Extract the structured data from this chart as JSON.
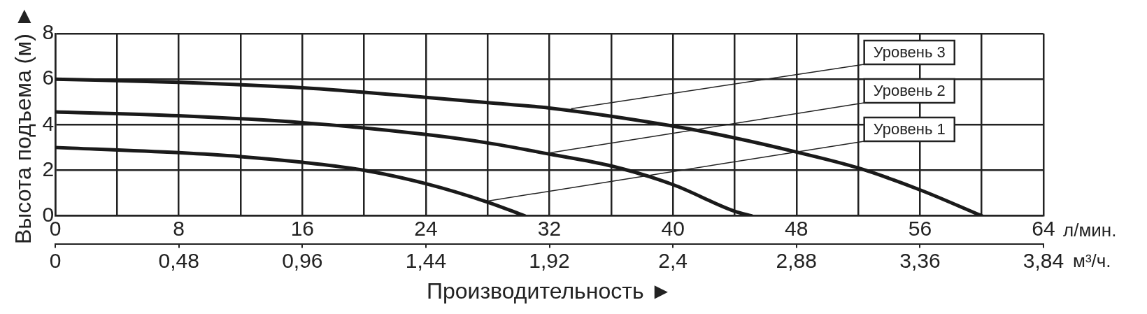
{
  "chart_data": {
    "type": "line",
    "xlabel": "Производительность ►",
    "ylabel": "Высота подъема (м) ►",
    "legend": false,
    "grid": true,
    "marker": "none",
    "line_style": "solid",
    "xlim": [
      0,
      64
    ],
    "xticks": [
      0,
      {
        "value": 4,
        "label": null
      },
      8,
      {
        "value": 12,
        "label": null
      },
      16,
      {
        "value": 20,
        "label": null
      },
      24,
      {
        "value": 28,
        "label": null
      },
      32,
      {
        "value": 36,
        "label": null
      },
      40,
      {
        "value": 44,
        "label": null
      },
      48,
      {
        "value": 52,
        "label": null
      },
      56,
      {
        "value": 60,
        "label": null
      },
      64
    ],
    "x2lim": [
      0,
      3.84
    ],
    "x2ticks": [
      0,
      {
        "value": 0.48,
        "label": "0,48"
      },
      {
        "value": 0.96,
        "label": "0,96"
      },
      {
        "value": 1.44,
        "label": "1,44"
      },
      {
        "value": 1.92,
        "label": "1,92"
      },
      {
        "value": 2.4,
        "label": "2,4"
      },
      {
        "value": 2.88,
        "label": "2,88"
      },
      {
        "value": 3.36,
        "label": "3,36"
      },
      {
        "value": 3.84,
        "label": "3,84"
      }
    ],
    "ylim": [
      0,
      8
    ],
    "yticks": [
      0,
      2,
      4,
      6,
      8
    ],
    "series": [
      {
        "color": "#1a1a1a",
        "x": [
          0,
          8,
          16,
          24,
          28,
          32,
          40,
          44,
          48,
          52,
          56,
          60
        ],
        "values": [
          6.0,
          5.86,
          5.62,
          5.2,
          4.97,
          4.73,
          3.94,
          3.42,
          2.8,
          2.1,
          1.14,
          0
        ]
      },
      {
        "color": "#1a1a1a",
        "x": [
          0,
          8,
          16,
          24,
          28,
          32,
          36,
          40,
          44,
          45.1
        ],
        "values": [
          4.56,
          4.39,
          4.09,
          3.57,
          3.2,
          2.71,
          2.19,
          1.37,
          0.2,
          0
        ]
      },
      {
        "color": "#1a1a1a",
        "x": [
          0,
          8,
          12,
          16,
          20,
          24,
          28,
          30.4
        ],
        "values": [
          3.0,
          2.77,
          2.6,
          2.35,
          2.0,
          1.41,
          0.6,
          0
        ]
      }
    ],
    "annotations": [
      {
        "text": "Уровень 3",
        "x": 33.4,
        "y": 4.7
      },
      {
        "text": "Уровень 2",
        "x": 31.9,
        "y": 2.75
      },
      {
        "text": "Уровень 1",
        "x": 28,
        "y": 0.65
      },
      "л/мин.",
      "м³/ч."
    ]
  }
}
